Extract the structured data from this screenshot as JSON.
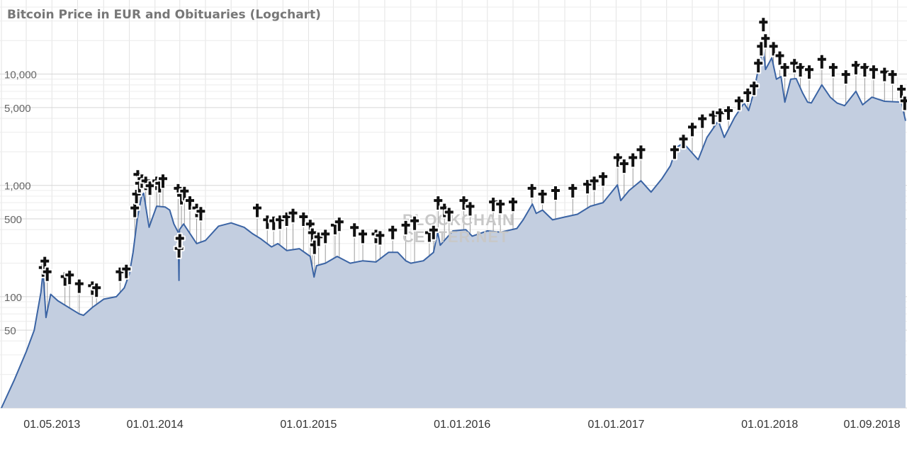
{
  "chart_data": {
    "type": "area",
    "title": "Bitcoin Price in EUR and Obituaries (Logchart)",
    "xlabel": "",
    "ylabel": "",
    "y_scale": "log",
    "ylim": [
      10,
      40000
    ],
    "xlim": [
      "2013-01-01",
      "2018-11-20"
    ],
    "y_ticks": [
      {
        "value": 50,
        "label": "50"
      },
      {
        "value": 100,
        "label": "100"
      },
      {
        "value": 500,
        "label": "500"
      },
      {
        "value": 1000,
        "label": "1,000"
      },
      {
        "value": 5000,
        "label": "5,000"
      },
      {
        "value": 10000,
        "label": "10,000"
      }
    ],
    "x_ticks": [
      {
        "date": "2013-05-01",
        "label": "01.05.2013"
      },
      {
        "date": "2014-01-01",
        "label": "01.01.2014"
      },
      {
        "date": "2015-01-01",
        "label": "01.01.2015"
      },
      {
        "date": "2016-01-01",
        "label": "01.01.2016"
      },
      {
        "date": "2017-01-01",
        "label": "01.01.2017"
      },
      {
        "date": "2018-01-01",
        "label": "01.01.2018"
      },
      {
        "date": "2018-09-01",
        "label": "01.09.2018"
      }
    ],
    "grid": true,
    "watermark": [
      "BLOCKCHAIN",
      "CENTER.NET"
    ],
    "colors": {
      "line": "#3b64a4",
      "fill": "#c3cee0",
      "marker": "#111111",
      "grid": "#e3e3e3"
    },
    "series": [
      {
        "name": "Price",
        "points": [
          [
            "2013-01-01",
            10
          ],
          [
            "2013-02-01",
            18
          ],
          [
            "2013-03-01",
            32
          ],
          [
            "2013-03-20",
            50
          ],
          [
            "2013-04-05",
            110
          ],
          [
            "2013-04-10",
            170
          ],
          [
            "2013-04-17",
            65
          ],
          [
            "2013-04-28",
            105
          ],
          [
            "2013-05-15",
            92
          ],
          [
            "2013-06-10",
            80
          ],
          [
            "2013-07-05",
            70
          ],
          [
            "2013-07-15",
            68
          ],
          [
            "2013-08-05",
            80
          ],
          [
            "2013-09-01",
            95
          ],
          [
            "2013-10-01",
            100
          ],
          [
            "2013-10-20",
            120
          ],
          [
            "2013-11-01",
            160
          ],
          [
            "2013-11-10",
            250
          ],
          [
            "2013-11-20",
            500
          ],
          [
            "2013-11-30",
            800
          ],
          [
            "2013-12-05",
            850
          ],
          [
            "2013-12-18",
            420
          ],
          [
            "2013-12-25",
            500
          ],
          [
            "2014-01-05",
            650
          ],
          [
            "2014-01-25",
            640
          ],
          [
            "2014-02-05",
            600
          ],
          [
            "2014-02-15",
            450
          ],
          [
            "2014-02-25",
            380
          ],
          [
            "2014-02-27",
            140
          ],
          [
            "2014-02-28",
            400
          ],
          [
            "2014-03-10",
            450
          ],
          [
            "2014-04-10",
            300
          ],
          [
            "2014-05-01",
            320
          ],
          [
            "2014-06-01",
            430
          ],
          [
            "2014-07-01",
            460
          ],
          [
            "2014-08-01",
            420
          ],
          [
            "2014-08-20",
            370
          ],
          [
            "2014-09-10",
            330
          ],
          [
            "2014-10-05",
            280
          ],
          [
            "2014-10-20",
            300
          ],
          [
            "2014-11-10",
            260
          ],
          [
            "2014-12-10",
            270
          ],
          [
            "2015-01-05",
            230
          ],
          [
            "2015-01-14",
            150
          ],
          [
            "2015-01-20",
            190
          ],
          [
            "2015-02-10",
            200
          ],
          [
            "2015-03-10",
            230
          ],
          [
            "2015-04-10",
            200
          ],
          [
            "2015-05-10",
            210
          ],
          [
            "2015-06-10",
            205
          ],
          [
            "2015-07-10",
            250
          ],
          [
            "2015-08-01",
            250
          ],
          [
            "2015-08-20",
            210
          ],
          [
            "2015-09-01",
            200
          ],
          [
            "2015-10-01",
            210
          ],
          [
            "2015-10-25",
            250
          ],
          [
            "2015-11-04",
            380
          ],
          [
            "2015-11-10",
            290
          ],
          [
            "2015-12-10",
            390
          ],
          [
            "2016-01-10",
            400
          ],
          [
            "2016-01-25",
            350
          ],
          [
            "2016-03-01",
            390
          ],
          [
            "2016-04-01",
            380
          ],
          [
            "2016-05-10",
            410
          ],
          [
            "2016-05-25",
            490
          ],
          [
            "2016-06-16",
            680
          ],
          [
            "2016-06-25",
            560
          ],
          [
            "2016-07-10",
            600
          ],
          [
            "2016-08-03",
            490
          ],
          [
            "2016-09-01",
            520
          ],
          [
            "2016-10-01",
            550
          ],
          [
            "2016-11-01",
            650
          ],
          [
            "2016-12-01",
            700
          ],
          [
            "2017-01-04",
            1010
          ],
          [
            "2017-01-12",
            730
          ],
          [
            "2017-02-01",
            900
          ],
          [
            "2017-03-01",
            1100
          ],
          [
            "2017-03-25",
            870
          ],
          [
            "2017-04-20",
            1150
          ],
          [
            "2017-05-10",
            1500
          ],
          [
            "2017-05-25",
            2200
          ],
          [
            "2017-06-10",
            2400
          ],
          [
            "2017-07-15",
            1700
          ],
          [
            "2017-08-05",
            2700
          ],
          [
            "2017-09-01",
            3800
          ],
          [
            "2017-09-15",
            2700
          ],
          [
            "2017-10-10",
            4100
          ],
          [
            "2017-11-01",
            5500
          ],
          [
            "2017-11-12",
            4700
          ],
          [
            "2017-11-25",
            7000
          ],
          [
            "2017-12-08",
            13000
          ],
          [
            "2017-12-17",
            16500
          ],
          [
            "2017-12-22",
            11000
          ],
          [
            "2018-01-06",
            14000
          ],
          [
            "2018-01-17",
            9000
          ],
          [
            "2018-01-28",
            9500
          ],
          [
            "2018-02-06",
            5600
          ],
          [
            "2018-02-20",
            9000
          ],
          [
            "2018-03-05",
            9100
          ],
          [
            "2018-03-20",
            6800
          ],
          [
            "2018-04-01",
            5600
          ],
          [
            "2018-04-10",
            5500
          ],
          [
            "2018-05-05",
            8000
          ],
          [
            "2018-05-25",
            6200
          ],
          [
            "2018-06-10",
            5500
          ],
          [
            "2018-06-28",
            5200
          ],
          [
            "2018-07-25",
            7000
          ],
          [
            "2018-08-10",
            5300
          ],
          [
            "2018-09-01",
            6200
          ],
          [
            "2018-10-01",
            5700
          ],
          [
            "2018-11-10",
            5600
          ],
          [
            "2018-11-15",
            4600
          ],
          [
            "2018-11-20",
            3800
          ]
        ]
      },
      {
        "name": "Obituaries",
        "points": [
          [
            "2013-04-10",
            175
          ],
          [
            "2013-04-14",
            200
          ],
          [
            "2013-04-20",
            160
          ],
          [
            "2013-06-01",
            145
          ],
          [
            "2013-06-12",
            150
          ],
          [
            "2013-07-05",
            125
          ],
          [
            "2013-08-05",
            120
          ],
          [
            "2013-08-15",
            115
          ],
          [
            "2013-10-10",
            160
          ],
          [
            "2013-10-25",
            170
          ],
          [
            "2013-11-14",
            600
          ],
          [
            "2013-11-18",
            800
          ],
          [
            "2013-11-21",
            1200
          ],
          [
            "2013-11-25",
            1000
          ],
          [
            "2013-12-01",
            1100
          ],
          [
            "2013-12-10",
            1050
          ],
          [
            "2013-12-20",
            950
          ],
          [
            "2014-01-05",
            1050
          ],
          [
            "2014-01-12",
            1000
          ],
          [
            "2014-01-20",
            1100
          ],
          [
            "2014-02-25",
            900
          ],
          [
            "2014-02-27",
            260
          ],
          [
            "2014-03-01",
            320
          ],
          [
            "2014-03-05",
            780
          ],
          [
            "2014-03-12",
            850
          ],
          [
            "2014-03-25",
            700
          ],
          [
            "2014-04-10",
            600
          ],
          [
            "2014-04-20",
            560
          ],
          [
            "2014-09-01",
            600
          ],
          [
            "2014-09-25",
            470
          ],
          [
            "2014-10-10",
            460
          ],
          [
            "2014-10-25",
            470
          ],
          [
            "2014-11-10",
            500
          ],
          [
            "2014-11-25",
            540
          ],
          [
            "2014-12-20",
            500
          ],
          [
            "2015-01-05",
            430
          ],
          [
            "2015-01-10",
            360
          ],
          [
            "2015-01-15",
            280
          ],
          [
            "2015-01-25",
            330
          ],
          [
            "2015-02-10",
            350
          ],
          [
            "2015-03-05",
            420
          ],
          [
            "2015-03-15",
            450
          ],
          [
            "2015-04-20",
            400
          ],
          [
            "2015-05-10",
            350
          ],
          [
            "2015-06-10",
            350
          ],
          [
            "2015-06-20",
            340
          ],
          [
            "2015-07-20",
            380
          ],
          [
            "2015-08-20",
            420
          ],
          [
            "2015-09-10",
            460
          ],
          [
            "2015-10-15",
            360
          ],
          [
            "2015-10-25",
            380
          ],
          [
            "2015-11-05",
            700
          ],
          [
            "2015-11-20",
            600
          ],
          [
            "2015-12-01",
            550
          ],
          [
            "2016-01-05",
            700
          ],
          [
            "2016-01-20",
            620
          ],
          [
            "2016-03-15",
            680
          ],
          [
            "2016-04-01",
            650
          ],
          [
            "2016-05-01",
            680
          ],
          [
            "2016-06-15",
            900
          ],
          [
            "2016-07-10",
            800
          ],
          [
            "2016-08-10",
            860
          ],
          [
            "2016-09-20",
            900
          ],
          [
            "2016-10-25",
            980
          ],
          [
            "2016-11-10",
            1050
          ],
          [
            "2016-12-01",
            1150
          ],
          [
            "2017-01-05",
            1700
          ],
          [
            "2017-01-20",
            1500
          ],
          [
            "2017-02-10",
            1700
          ],
          [
            "2017-03-01",
            2000
          ],
          [
            "2017-05-20",
            2000
          ],
          [
            "2017-06-10",
            2500
          ],
          [
            "2017-07-01",
            3200
          ],
          [
            "2017-07-25",
            3800
          ],
          [
            "2017-08-20",
            4100
          ],
          [
            "2017-09-05",
            4300
          ],
          [
            "2017-09-25",
            4500
          ],
          [
            "2017-10-20",
            5500
          ],
          [
            "2017-11-10",
            6500
          ],
          [
            "2017-11-25",
            7500
          ],
          [
            "2017-12-05",
            12000
          ],
          [
            "2017-12-12",
            17000
          ],
          [
            "2017-12-17",
            28000
          ],
          [
            "2017-12-22",
            20000
          ],
          [
            "2018-01-10",
            17000
          ],
          [
            "2018-01-25",
            14000
          ],
          [
            "2018-02-06",
            11000
          ],
          [
            "2018-03-01",
            12000
          ],
          [
            "2018-03-15",
            11000
          ],
          [
            "2018-04-05",
            10500
          ],
          [
            "2018-05-05",
            13000
          ],
          [
            "2018-06-01",
            11000
          ],
          [
            "2018-07-01",
            9500
          ],
          [
            "2018-07-25",
            11500
          ],
          [
            "2018-08-15",
            11000
          ],
          [
            "2018-09-05",
            10500
          ],
          [
            "2018-10-01",
            10000
          ],
          [
            "2018-10-20",
            9500
          ],
          [
            "2018-11-10",
            7000
          ],
          [
            "2018-11-18",
            5500
          ]
        ]
      }
    ]
  }
}
